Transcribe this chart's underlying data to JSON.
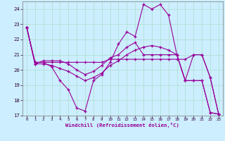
{
  "xlabel": "Windchill (Refroidissement éolien,°C)",
  "bg_color": "#cceeff",
  "grid_color": "#aaddcc",
  "line_color": "#990099",
  "xlim": [
    -0.5,
    23.5
  ],
  "ylim": [
    17,
    24.5
  ],
  "yticks": [
    17,
    18,
    19,
    20,
    21,
    22,
    23,
    24
  ],
  "xticks": [
    0,
    1,
    2,
    3,
    4,
    5,
    6,
    7,
    8,
    9,
    10,
    11,
    12,
    13,
    14,
    15,
    16,
    17,
    18,
    19,
    20,
    21,
    22,
    23
  ],
  "lines": [
    [
      0,
      22.8,
      1,
      20.5,
      2,
      20.5,
      3,
      20.5,
      4,
      20.5,
      5,
      20.5,
      6,
      20.5,
      7,
      20.5,
      8,
      20.5,
      9,
      20.5,
      10,
      20.7,
      11,
      20.7,
      12,
      20.7,
      13,
      20.7,
      14,
      20.7,
      15,
      20.7,
      16,
      20.7,
      17,
      20.7,
      18,
      20.7,
      19,
      20.7,
      20,
      21.0,
      21,
      21.0,
      22,
      19.5,
      23,
      17.1
    ],
    [
      0,
      22.8,
      1,
      20.5,
      2,
      20.5,
      3,
      20.2,
      4,
      19.3,
      5,
      18.7,
      6,
      17.5,
      7,
      17.3,
      8,
      19.3,
      9,
      19.7,
      10,
      20.5,
      11,
      21.7,
      12,
      22.5,
      13,
      22.2,
      14,
      24.3,
      15,
      24.0,
      16,
      24.3,
      17,
      23.6,
      18,
      21.0,
      19,
      19.3,
      20,
      21.0,
      21,
      21.0,
      22,
      19.5,
      23,
      17.1
    ],
    [
      0,
      22.8,
      1,
      20.4,
      2,
      20.6,
      3,
      20.6,
      4,
      20.6,
      5,
      20.4,
      6,
      20.0,
      7,
      19.7,
      8,
      19.9,
      9,
      20.3,
      10,
      20.8,
      11,
      21.0,
      12,
      21.5,
      13,
      21.8,
      14,
      21.0,
      15,
      21.0,
      16,
      21.0,
      17,
      21.0,
      18,
      21.0,
      19,
      19.3,
      20,
      19.3,
      21,
      19.3,
      22,
      17.2,
      23,
      17.1
    ],
    [
      0,
      22.8,
      1,
      20.4,
      2,
      20.4,
      3,
      20.3,
      4,
      20.1,
      5,
      19.9,
      6,
      19.6,
      7,
      19.3,
      8,
      19.5,
      9,
      19.8,
      10,
      20.3,
      11,
      20.6,
      12,
      21.0,
      13,
      21.3,
      14,
      21.5,
      15,
      21.6,
      16,
      21.5,
      17,
      21.3,
      18,
      21.0,
      19,
      19.3,
      20,
      19.3,
      21,
      19.3,
      22,
      17.2,
      23,
      17.1
    ]
  ]
}
